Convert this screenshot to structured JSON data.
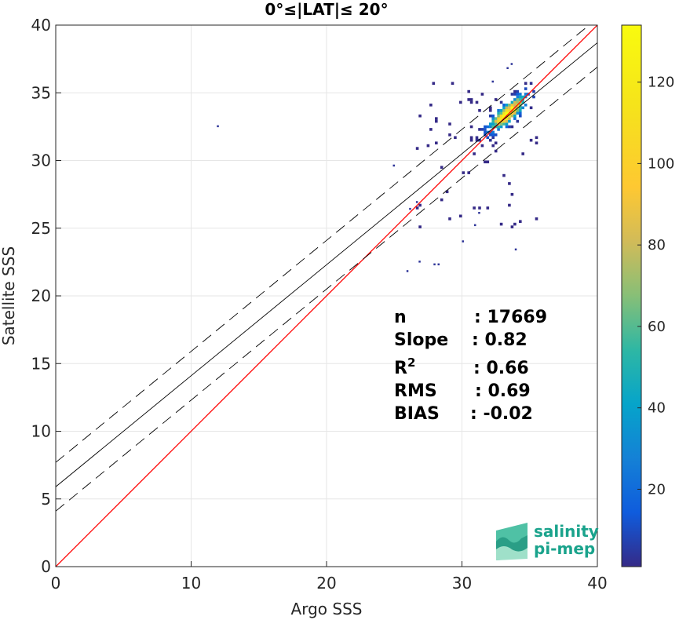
{
  "chart_data": {
    "type": "heatmap",
    "title": "0°≤|LAT|≤ 20°",
    "xlabel": "Argo SSS",
    "ylabel": "Satellite SSS",
    "xlim": [
      0,
      40
    ],
    "ylim": [
      0,
      40
    ],
    "xticks": [
      0,
      10,
      20,
      30,
      40
    ],
    "yticks": [
      0,
      5,
      10,
      15,
      20,
      25,
      30,
      35,
      40
    ],
    "grid": true,
    "colorbar": {
      "range": [
        1,
        134
      ],
      "ticks": [
        20,
        40,
        60,
        80,
        100,
        120
      ],
      "colormap": "parula"
    },
    "lines": [
      {
        "name": "one-to-one",
        "slope": 1.0,
        "intercept": 0.0,
        "color": "#ff0000",
        "style": "solid"
      },
      {
        "name": "regression",
        "slope": 0.82,
        "intercept": 5.9,
        "color": "#000000",
        "style": "solid"
      },
      {
        "name": "regression-plus",
        "slope": 0.82,
        "intercept": 7.7,
        "color": "#000000",
        "style": "dashed"
      },
      {
        "name": "regression-minus",
        "slope": 0.82,
        "intercept": 4.1,
        "color": "#000000",
        "style": "dashed"
      }
    ],
    "density_core": {
      "center": [
        33.3,
        33.4
      ],
      "peak": 134
    },
    "outliers": [
      [
        11.9,
        32.6
      ],
      [
        25.9,
        21.9
      ],
      [
        26.8,
        22.6
      ],
      [
        27.9,
        22.4
      ],
      [
        28.2,
        22.4
      ],
      [
        30.0,
        24.1
      ],
      [
        30.9,
        25.3
      ],
      [
        31.2,
        26.2
      ],
      [
        33.9,
        23.5
      ],
      [
        33.3,
        36.9
      ],
      [
        33.6,
        37.2
      ],
      [
        32.2,
        35.9
      ],
      [
        24.9,
        29.7
      ],
      [
        26.1,
        26.5
      ],
      [
        26.6,
        27.0
      ]
    ],
    "stats": [
      {
        "label": "n",
        "value": ": 17669"
      },
      {
        "label": "Slope",
        "value": ": 0.82"
      },
      {
        "label": "R2",
        "value": ": 0.66"
      },
      {
        "label": "RMS",
        "value": ": 0.69"
      },
      {
        "label": "BIAS",
        "value": ": -0.02"
      }
    ]
  },
  "logo": {
    "line1": "salinity",
    "line2": "pi-mep"
  }
}
